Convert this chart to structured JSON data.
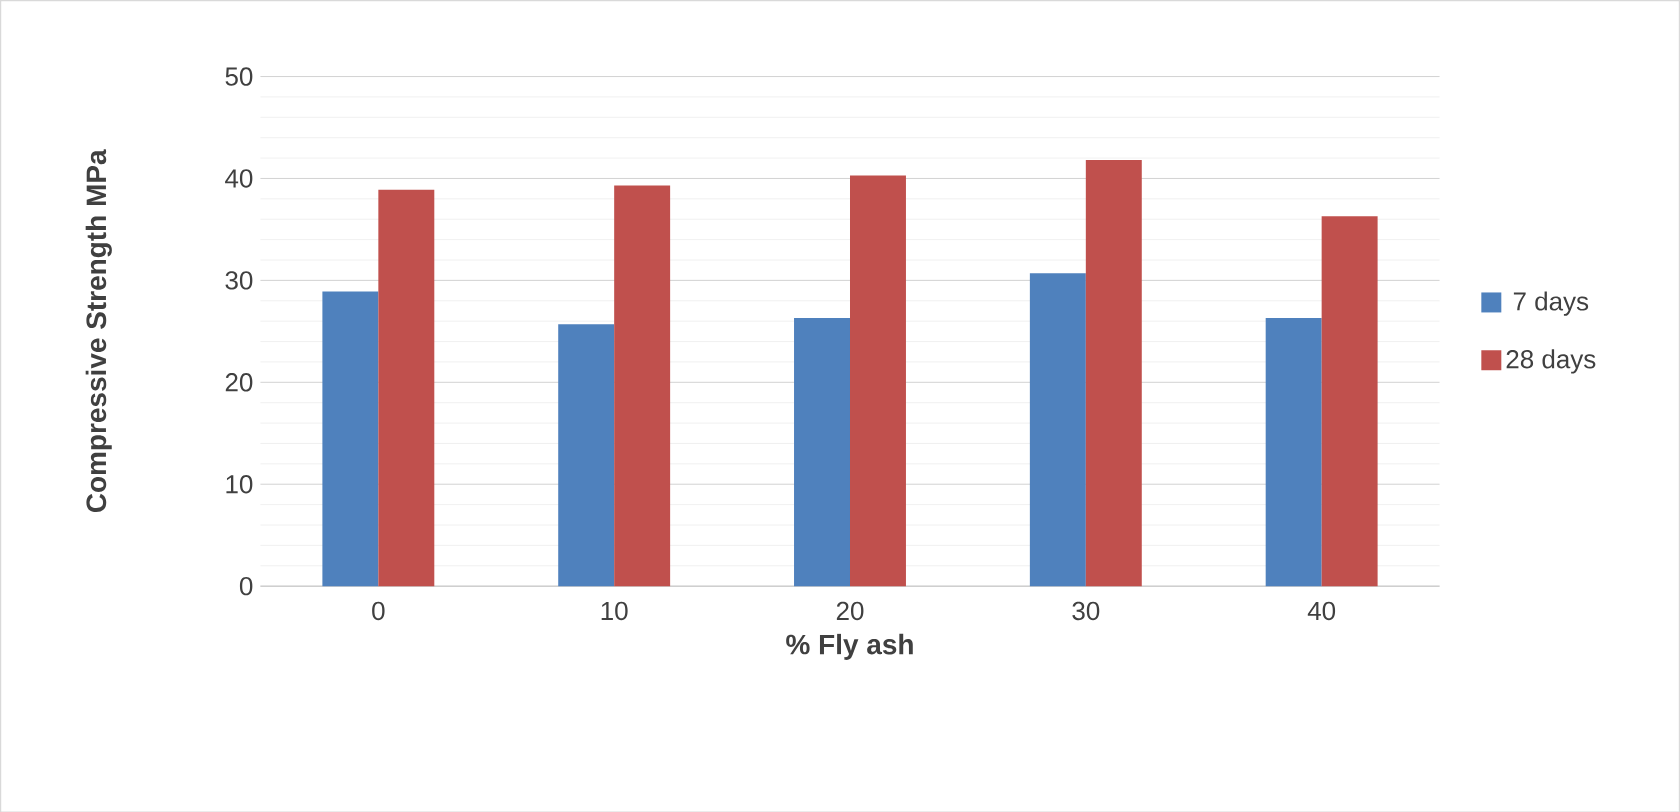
{
  "chart_data": {
    "type": "bar",
    "xlabel": "% Fly ash",
    "ylabel": "Compressive Strength MPa",
    "categories": [
      "0",
      "10",
      "20",
      "30",
      "40"
    ],
    "series": [
      {
        "name": "7 days",
        "color": "#4f81bd",
        "values": [
          28.9,
          25.7,
          26.3,
          30.7,
          26.3
        ]
      },
      {
        "name": "28 days",
        "color": "#c0504d",
        "values": [
          38.9,
          39.3,
          40.3,
          41.8,
          36.3
        ]
      }
    ],
    "ylim": [
      0,
      50
    ],
    "yticks": [
      0,
      10,
      20,
      30,
      40,
      50
    ],
    "grid": "y",
    "legend": "right"
  }
}
